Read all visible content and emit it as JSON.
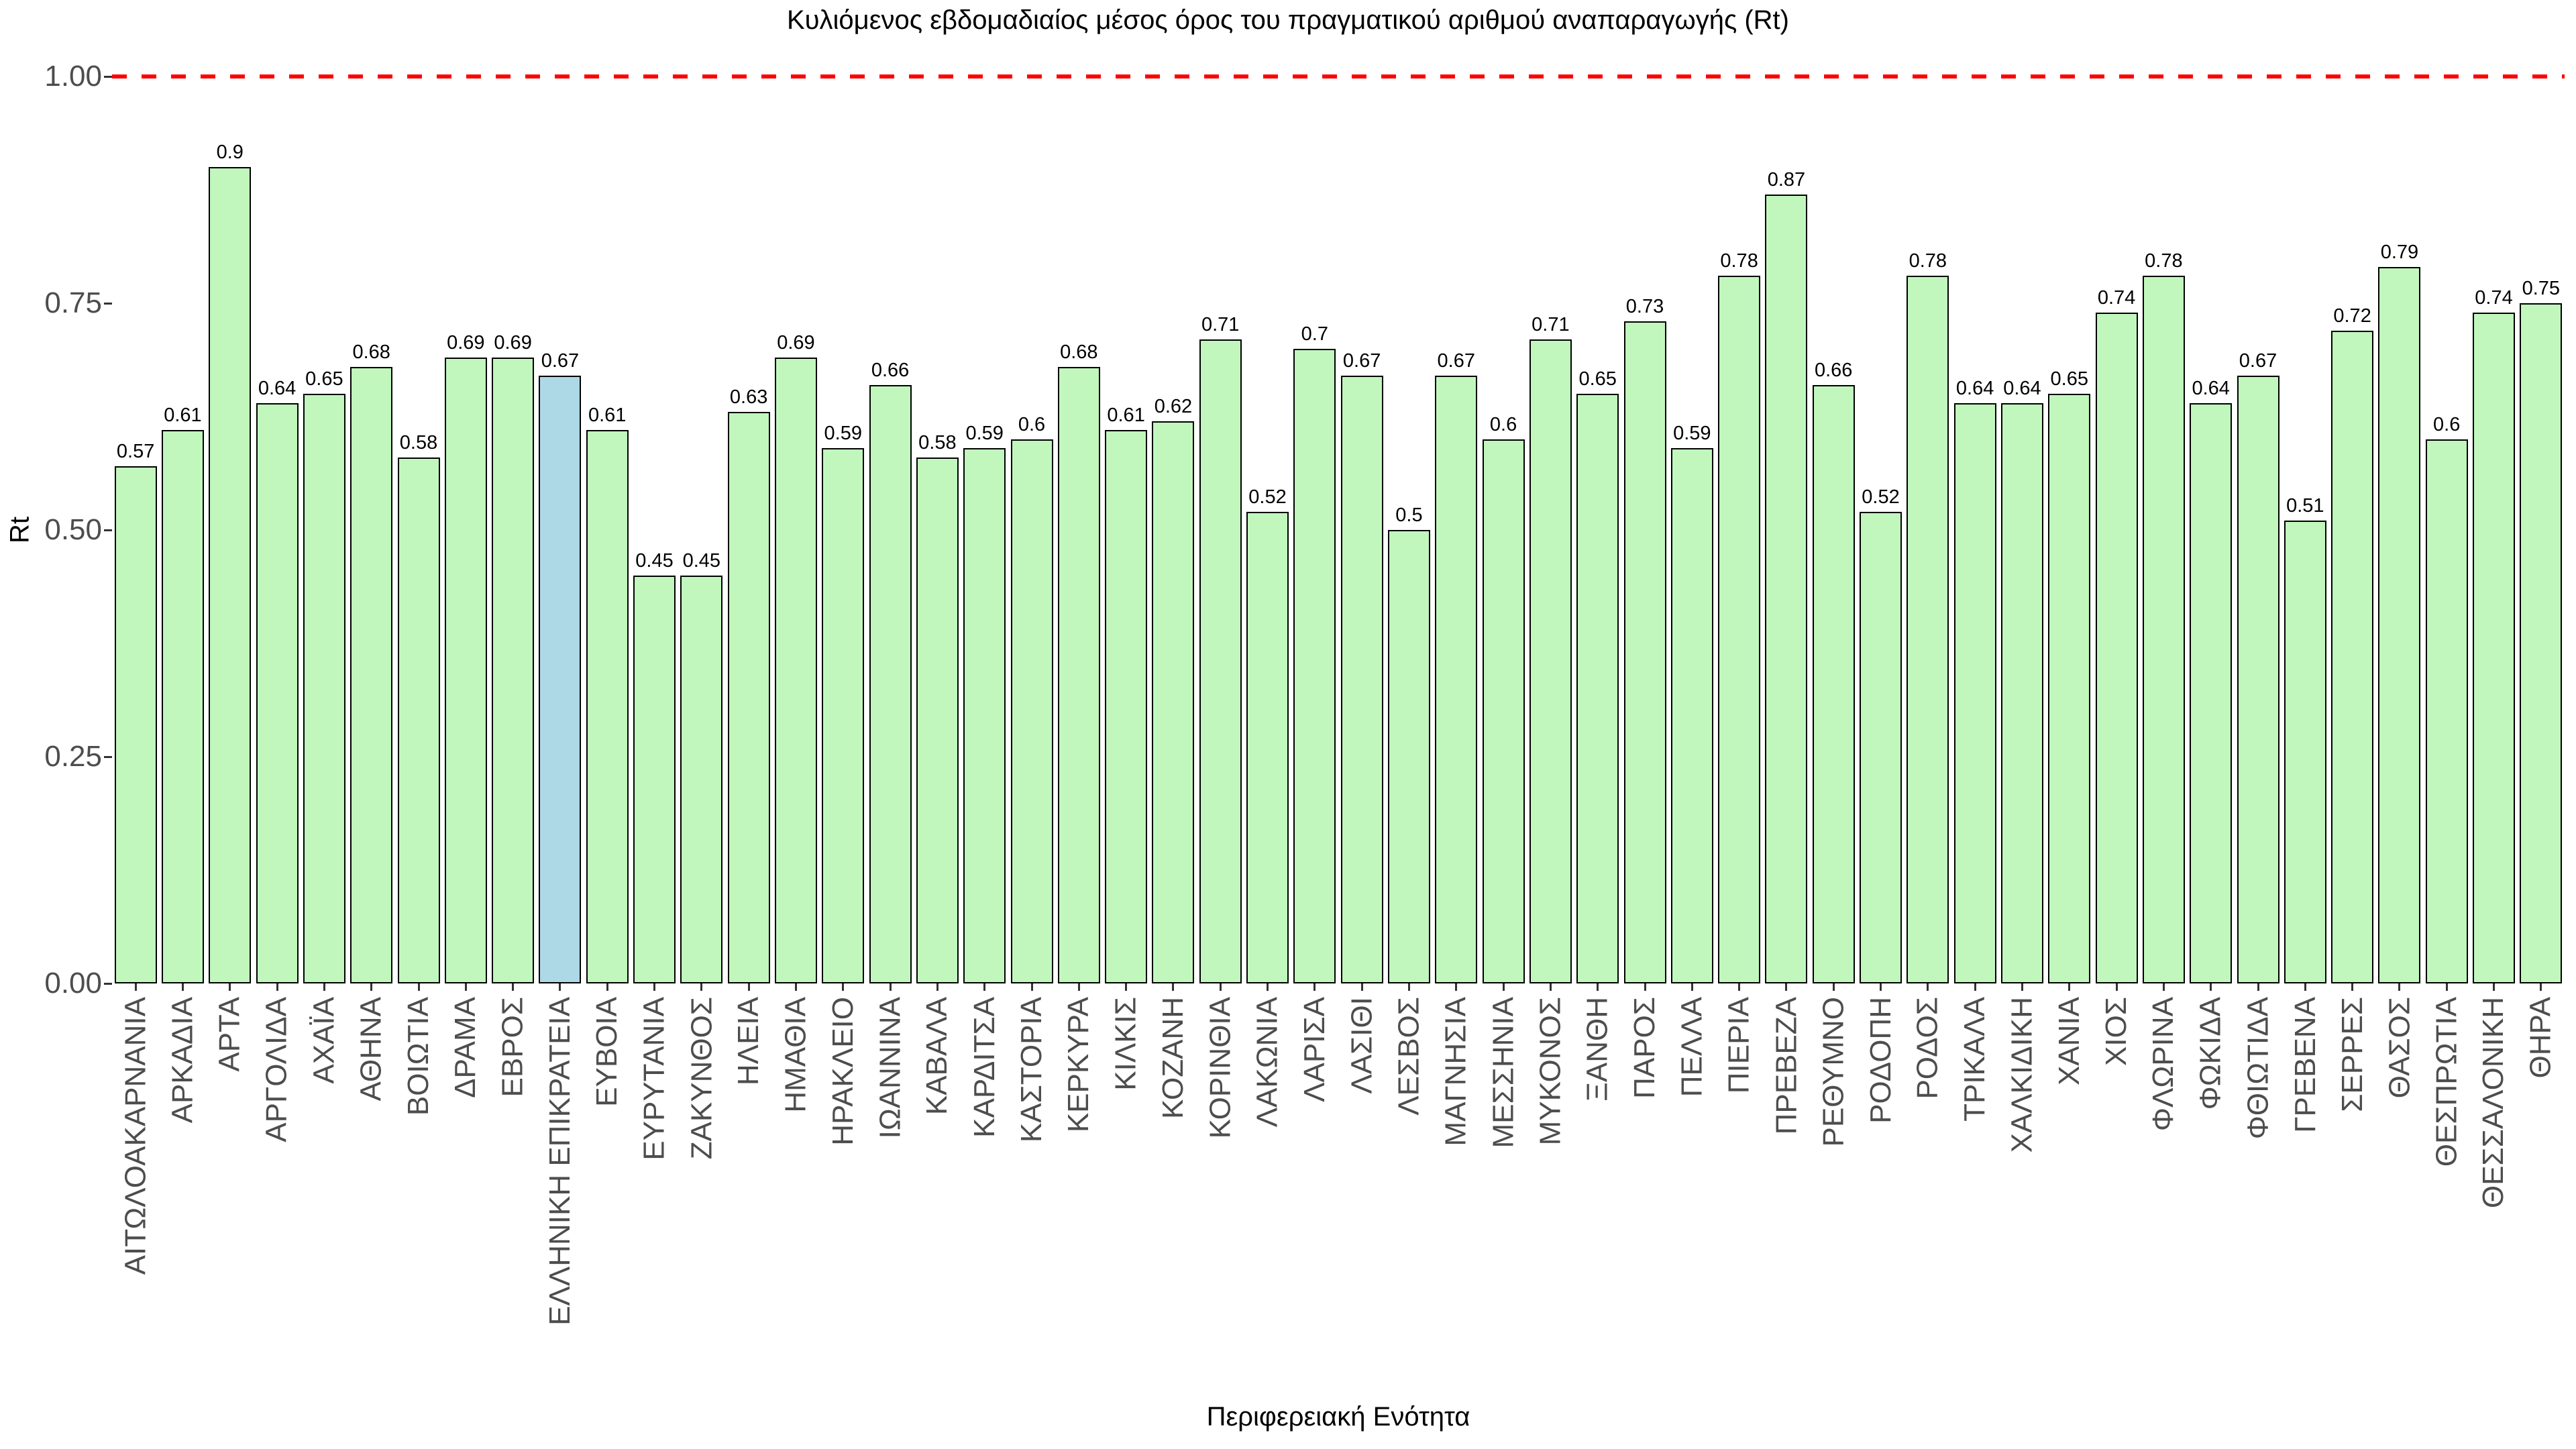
{
  "chart_data": {
    "type": "bar",
    "title": "Κυλιόμενος εβδομαδιαίος μέσος όρος του πραγματικού αριθμού αναπαραγωγής (Rt)",
    "xlabel": "Περιφερειακή Ενότητα",
    "ylabel": "Rt",
    "ylim": [
      0,
      1.0
    ],
    "grid": "off",
    "legend": "none",
    "yticks": [
      {
        "value": 0.0,
        "label": "0.00"
      },
      {
        "value": 0.25,
        "label": "0.25"
      },
      {
        "value": 0.5,
        "label": "0.50"
      },
      {
        "value": 0.75,
        "label": "0.75"
      },
      {
        "value": 1.0,
        "label": "1.00"
      }
    ],
    "reference_line": {
      "value": 1.0,
      "style": "dashed",
      "color": "#FF0000"
    },
    "colors": {
      "bar_fill": "#C1F7BD",
      "bar_border": "#000000",
      "highlight_fill": "#ADD8E6",
      "axis_text": "#4D4D4D",
      "tick_mark": "#333333",
      "title_text": "#000000"
    },
    "highlight_category": "ΕΛΛΗΝΙΚΗ ΕΠΙΚΡΑΤΕΙΑ",
    "categories": [
      "ΑΙΤΩΛΟΑΚΑΡΝΑΝΙΑ",
      "ΑΡΚΑΔΙΑ",
      "ΑΡΤΑ",
      "ΑΡΓΟΛΙΔΑ",
      "ΑΧΑΪΑ",
      "ΑΘΗΝΑ",
      "ΒΟΙΩΤΙΑ",
      "ΔΡΑΜΑ",
      "ΕΒΡΟΣ",
      "ΕΛΛΗΝΙΚΗ ΕΠΙΚΡΑΤΕΙΑ",
      "ΕΥΒΟΙΑ",
      "ΕΥΡΥΤΑΝΙΑ",
      "ΖΑΚΥΝΘΟΣ",
      "ΗΛΕΙΑ",
      "ΗΜΑΘΙΑ",
      "ΗΡΑΚΛΕΙΟ",
      "ΙΩΑΝΝΙΝΑ",
      "ΚΑΒΑΛΑ",
      "ΚΑΡΔΙΤΣΑ",
      "ΚΑΣΤΟΡΙΑ",
      "ΚΕΡΚΥΡΑ",
      "ΚΙΛΚΙΣ",
      "ΚΟΖΑΝΗ",
      "ΚΟΡΙΝΘΙΑ",
      "ΛΑΚΩΝΙΑ",
      "ΛΑΡΙΣΑ",
      "ΛΑΣΙΘΙ",
      "ΛΕΣΒΟΣ",
      "ΜΑΓΝΗΣΙΑ",
      "ΜΕΣΣΗΝΙΑ",
      "ΜΥΚΟΝΟΣ",
      "ΞΑΝΘΗ",
      "ΠΑΡΟΣ",
      "ΠΕΛΛΑ",
      "ΠΙΕΡΙΑ",
      "ΠΡΕΒΕΖΑ",
      "ΡΕΘΥΜΝΟ",
      "ΡΟΔΟΠΗ",
      "ΡΟΔΟΣ",
      "ΤΡΙΚΑΛΑ",
      "ΧΑΛΚΙΔΙΚΗ",
      "ΧΑΝΙΑ",
      "ΧΙΟΣ",
      "ΦΛΩΡΙΝΑ",
      "ΦΩΚΙΔΑ",
      "ΦΘΙΩΤΙΔΑ",
      "ΓΡΕΒΕΝΑ",
      "ΣΕΡΡΕΣ",
      "ΘΑΣΟΣ",
      "ΘΕΣΠΡΩΤΙΑ",
      "ΘΕΣΣΑΛΟΝΙΚΗ",
      "ΘΗΡΑ"
    ],
    "values": [
      0.57,
      0.61,
      0.9,
      0.64,
      0.65,
      0.68,
      0.58,
      0.69,
      0.69,
      0.67,
      0.61,
      0.45,
      0.45,
      0.63,
      0.69,
      0.59,
      0.66,
      0.58,
      0.59,
      0.6,
      0.68,
      0.61,
      0.62,
      0.71,
      0.52,
      0.7,
      0.67,
      0.5,
      0.67,
      0.6,
      0.71,
      0.65,
      0.73,
      0.59,
      0.78,
      0.87,
      0.66,
      0.52,
      0.78,
      0.64,
      0.64,
      0.65,
      0.74,
      0.78,
      0.64,
      0.67,
      0.51,
      0.72,
      0.79,
      0.6,
      0.74,
      0.75
    ],
    "value_labels": [
      "0.57",
      "0.61",
      "0.9",
      "0.64",
      "0.65",
      "0.68",
      "0.58",
      "0.69",
      "0.69",
      "0.67",
      "0.61",
      "0.45",
      "0.45",
      "0.63",
      "0.69",
      "0.59",
      "0.66",
      "0.58",
      "0.59",
      "0.6",
      "0.68",
      "0.61",
      "0.62",
      "0.71",
      "0.52",
      "0.7",
      "0.67",
      "0.5",
      "0.67",
      "0.6",
      "0.71",
      "0.65",
      "0.73",
      "0.59",
      "0.78",
      "0.87",
      "0.66",
      "0.52",
      "0.78",
      "0.64",
      "0.64",
      "0.65",
      "0.74",
      "0.78",
      "0.64",
      "0.67",
      "0.51",
      "0.72",
      "0.79",
      "0.6",
      "0.74",
      "0.75"
    ]
  }
}
